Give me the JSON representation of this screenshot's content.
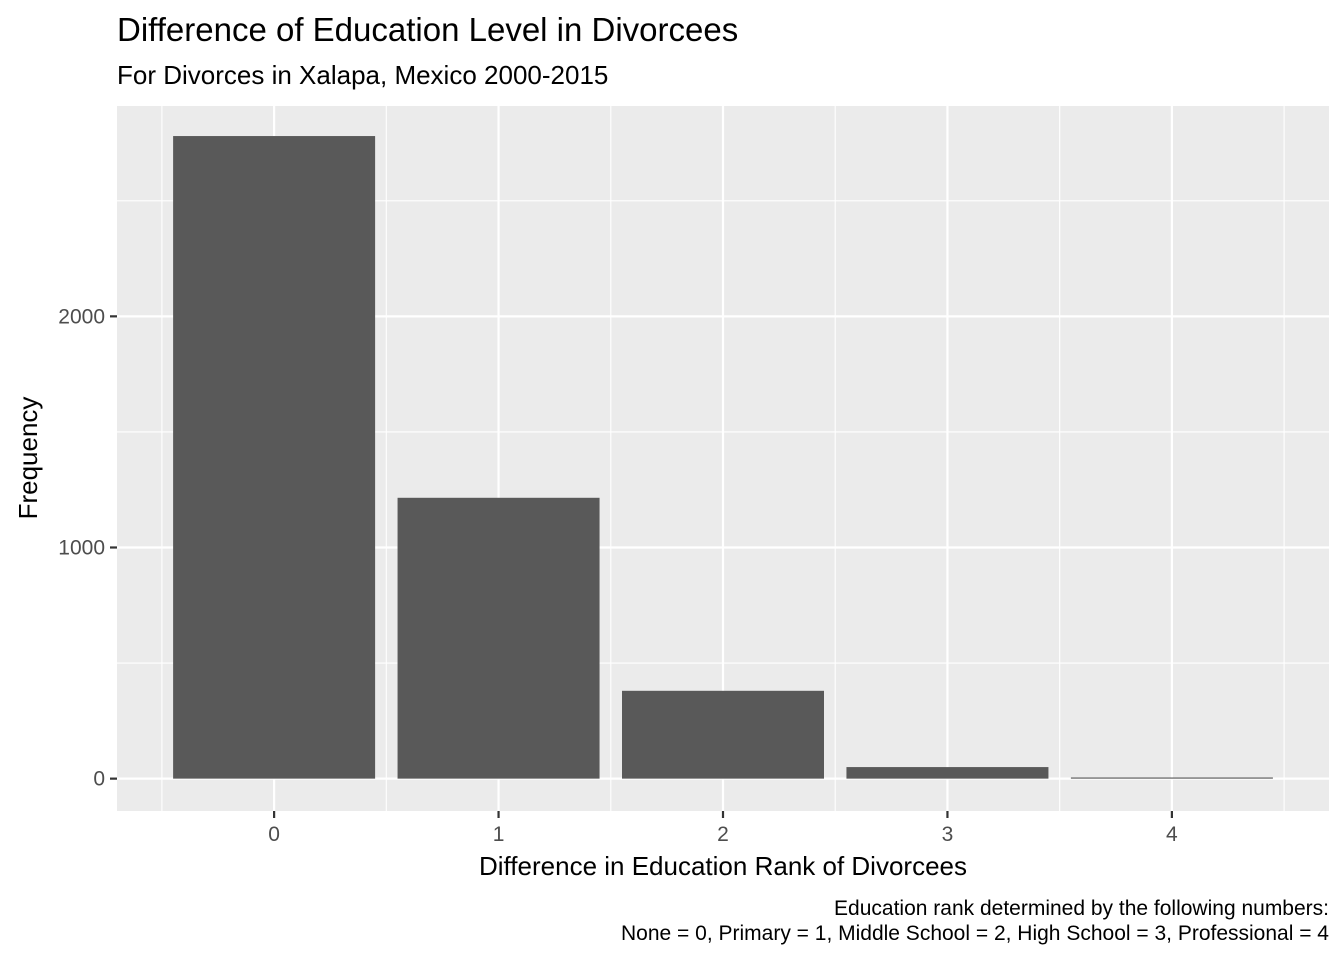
{
  "chart_data": {
    "type": "bar",
    "title": "Difference of Education Level in Divorcees",
    "subtitle": "For Divorces in Xalapa, Mexico 2000-2015",
    "xlabel": "Difference in Education Rank of Divorcees",
    "ylabel": "Frequency",
    "caption_lines": [
      "Education rank determined by the following numbers:",
      "None = 0, Primary = 1, Middle School = 2, High School = 3, Professional = 4"
    ],
    "categories": [
      "0",
      "1",
      "2",
      "3",
      "4"
    ],
    "values": [
      2780,
      1215,
      380,
      50,
      5
    ],
    "ylim": [
      -140,
      2910
    ],
    "yticks": [
      0,
      1000,
      2000
    ],
    "ytick_labels": [
      "0",
      "1000",
      "2000"
    ],
    "grid": true,
    "bar_color": "#595959",
    "panel_color": "#ebebeb",
    "grid_color": "#ffffff"
  }
}
